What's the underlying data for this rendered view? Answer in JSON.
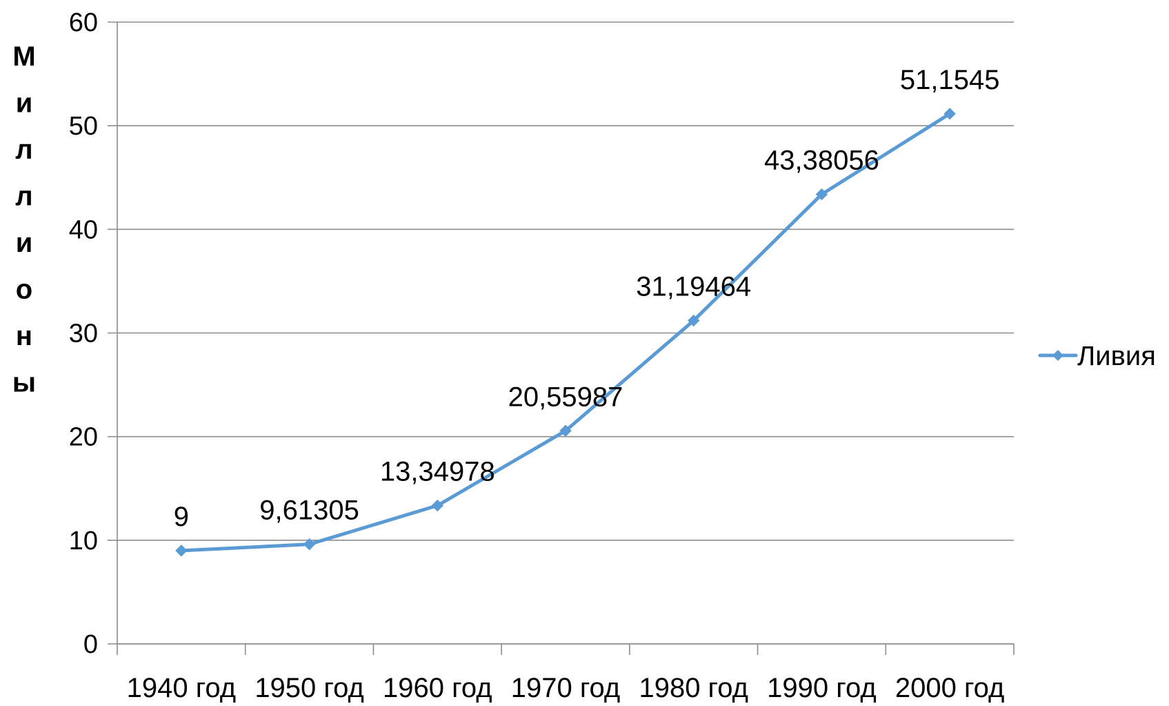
{
  "chart_data": {
    "type": "line",
    "title": "",
    "xlabel": "",
    "ylabel": "Миллионы",
    "categories": [
      "1940 год",
      "1950 год",
      "1960 год",
      "1970 год",
      "1980 год",
      "1990 год",
      "2000 год"
    ],
    "series": [
      {
        "name": "Ливия",
        "values": [
          9,
          9.61305,
          13.34978,
          20.55987,
          31.19464,
          43.38056,
          51.1545
        ],
        "data_labels": [
          "9",
          "9,61305",
          "13,34978",
          "20,55987",
          "31,19464",
          "43,38056",
          "51,1545"
        ],
        "color": "#5B9BD5",
        "marker": "diamond"
      }
    ],
    "ylim": [
      0,
      60
    ],
    "yticks": [
      0,
      10,
      20,
      30,
      40,
      50,
      60
    ],
    "ytick_labels": [
      "0",
      "10",
      "20",
      "30",
      "40",
      "50",
      "60"
    ],
    "grid": "horizontal",
    "legend_position": "right",
    "gridline_color": "#8c8c8c",
    "axis_color": "#8c8c8c"
  }
}
